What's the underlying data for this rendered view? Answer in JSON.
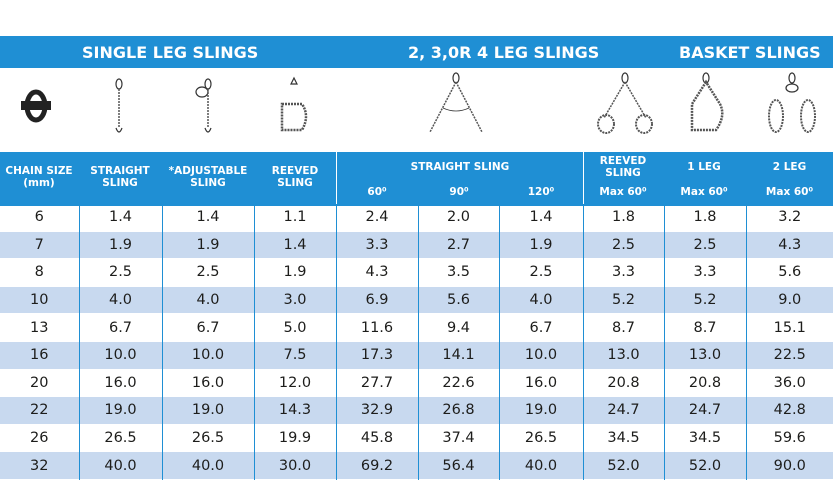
{
  "sections": {
    "single": "SINGLE LEG SLINGS",
    "multi": "2, 3,0R 4 LEG SLINGS",
    "basket": "BASKET SLINGS"
  },
  "icons": [
    "chain-link-icon",
    "straight-sling-icon",
    "adjustable-sling-icon",
    "reeved-sling-icon",
    "two-leg-sling-icon",
    "reeved-two-leg-sling-icon",
    "basket-one-leg-icon",
    "basket-two-leg-icon"
  ],
  "headers": {
    "chain_size": [
      "CHAIN SIZE",
      "(mm)"
    ],
    "straight": [
      "STRAIGHT",
      "SLING"
    ],
    "adjustable": [
      "*ADJUSTABLE",
      "SLING"
    ],
    "reeved": [
      "REEVED",
      "SLING"
    ],
    "straight_sling_group": "STRAIGHT SLING",
    "angle_60": "60⁰",
    "angle_90": "90⁰",
    "angle_120": "120⁰",
    "reeved_sling_multi": [
      "REEVED",
      "SLING"
    ],
    "reeved_max": "Max 60⁰",
    "one_leg": "1 LEG",
    "one_leg_max": "Max 60⁰",
    "two_leg": "2 LEG",
    "two_leg_max": "Max 60⁰"
  },
  "rows": [
    [
      "6",
      "1.4",
      "1.4",
      "1.1",
      "2.4",
      "2.0",
      "1.4",
      "1.8",
      "1.8",
      "3.2"
    ],
    [
      "7",
      "1.9",
      "1.9",
      "1.4",
      "3.3",
      "2.7",
      "1.9",
      "2.5",
      "2.5",
      "4.3"
    ],
    [
      "8",
      "2.5",
      "2.5",
      "1.9",
      "4.3",
      "3.5",
      "2.5",
      "3.3",
      "3.3",
      "5.6"
    ],
    [
      "10",
      "4.0",
      "4.0",
      "3.0",
      "6.9",
      "5.6",
      "4.0",
      "5.2",
      "5.2",
      "9.0"
    ],
    [
      "13",
      "6.7",
      "6.7",
      "5.0",
      "11.6",
      "9.4",
      "6.7",
      "8.7",
      "8.7",
      "15.1"
    ],
    [
      "16",
      "10.0",
      "10.0",
      "7.5",
      "17.3",
      "14.1",
      "10.0",
      "13.0",
      "13.0",
      "22.5"
    ],
    [
      "20",
      "16.0",
      "16.0",
      "12.0",
      "27.7",
      "22.6",
      "16.0",
      "20.8",
      "20.8",
      "36.0"
    ],
    [
      "22",
      "19.0",
      "19.0",
      "14.3",
      "32.9",
      "26.8",
      "19.0",
      "24.7",
      "24.7",
      "42.8"
    ],
    [
      "26",
      "26.5",
      "26.5",
      "19.9",
      "45.8",
      "37.4",
      "26.5",
      "34.5",
      "34.5",
      "59.6"
    ],
    [
      "32",
      "40.0",
      "40.0",
      "30.0",
      "69.2",
      "56.4",
      "40.0",
      "52.0",
      "52.0",
      "90.0"
    ]
  ],
  "colors": {
    "accent": "#1f8fd4",
    "alt_row": "#c8d9ef"
  }
}
